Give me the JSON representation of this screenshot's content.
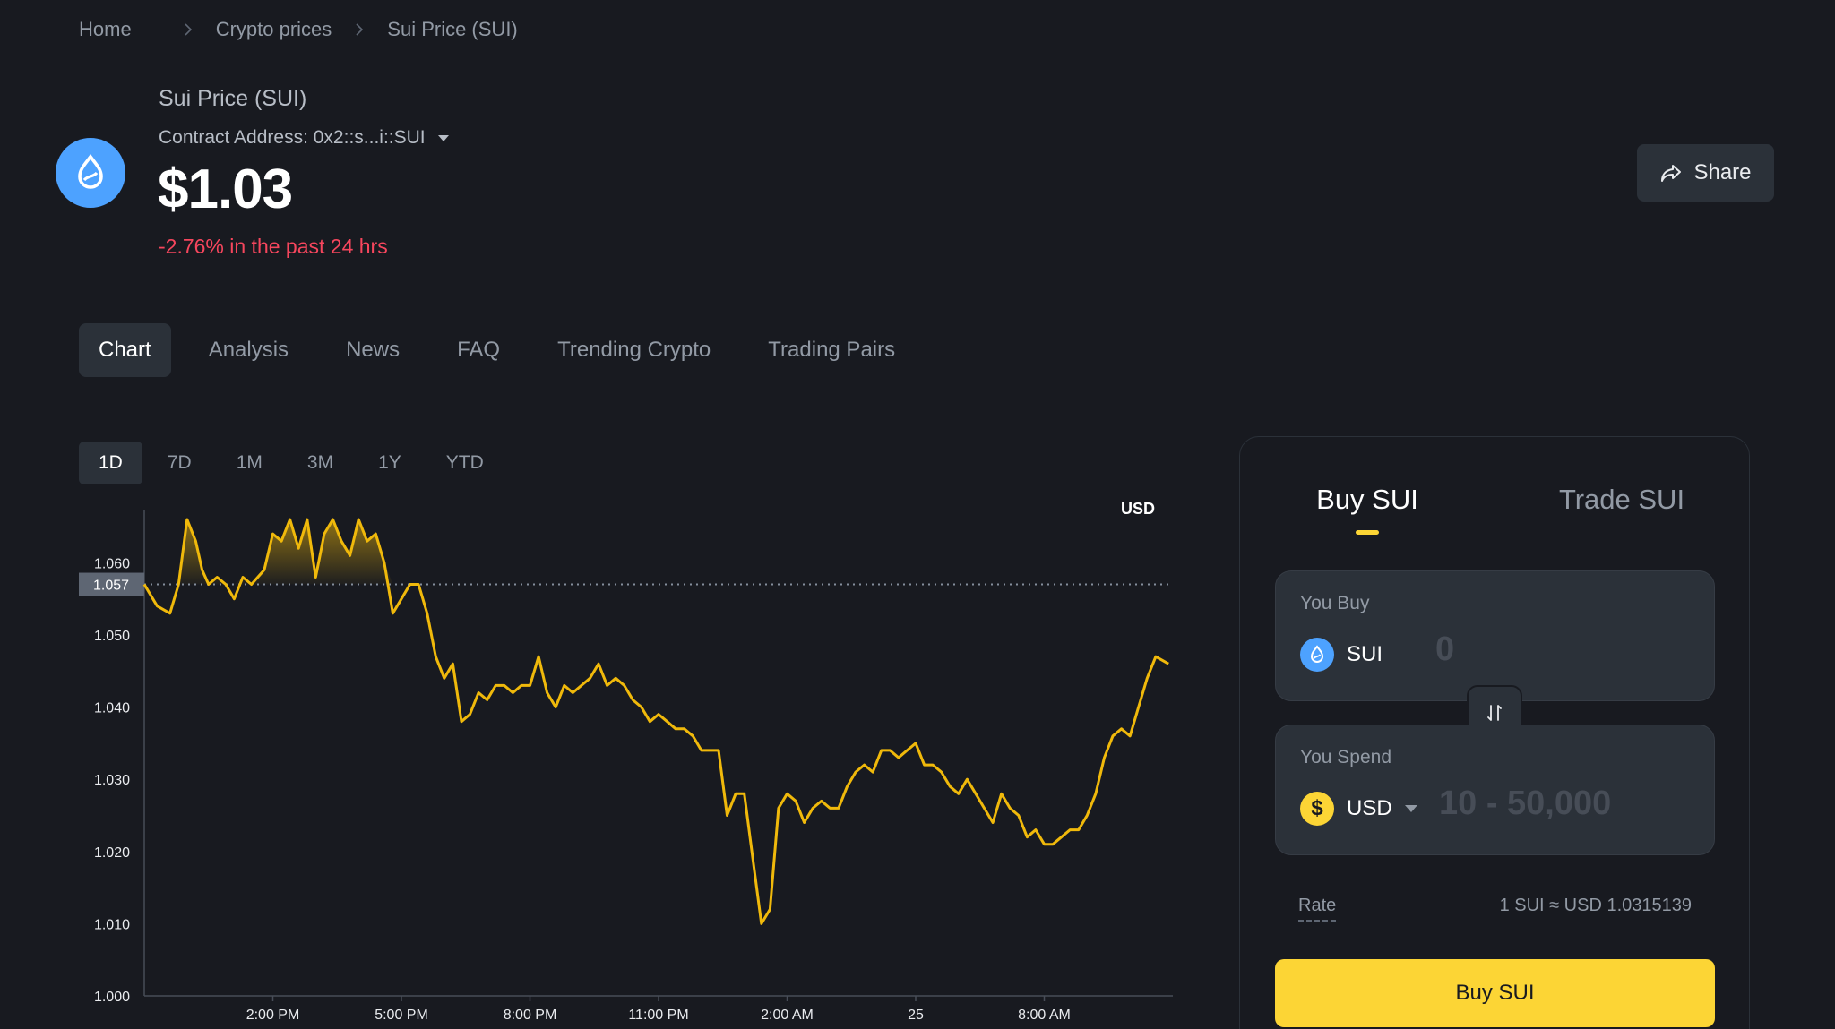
{
  "breadcrumb": {
    "home": "Home",
    "crypto_prices": "Crypto prices",
    "current": "Sui Price (SUI)"
  },
  "coin": {
    "name": "Sui Price (SUI)",
    "contract": "Contract Address: 0x2::s...i::SUI",
    "price": "$1.03",
    "change": "-2.76% in the past 24 hrs",
    "logo_icon": "sui-drop-icon",
    "brand_color": "#4da2ff"
  },
  "share": {
    "label": "Share",
    "icon": "share-arrow-icon"
  },
  "tabs": [
    "Chart",
    "Analysis",
    "News",
    "FAQ",
    "Trending Crypto",
    "Trading Pairs"
  ],
  "ranges": [
    "1D",
    "7D",
    "1M",
    "3M",
    "1Y",
    "YTD"
  ],
  "currency_label": "USD",
  "chart_data": {
    "type": "line",
    "ylim": [
      1.0,
      1.066
    ],
    "yticks": [
      "1.000",
      "1.010",
      "1.020",
      "1.030",
      "1.040",
      "1.050",
      "1.060"
    ],
    "ytick_values": [
      1.0,
      1.01,
      1.02,
      1.03,
      1.04,
      1.05,
      1.06
    ],
    "xticks": [
      "2:00 PM",
      "5:00 PM",
      "8:00 PM",
      "11:00 PM",
      "2:00 AM",
      "25",
      "8:00 AM"
    ],
    "xtick_values": [
      14,
      17,
      20,
      23,
      26,
      29,
      32
    ],
    "xlim": [
      11,
      35
    ],
    "baseline": 1.057,
    "baseline_label": "1.057",
    "grid": false,
    "line_color": "#f0b90b",
    "series": [
      {
        "x": [
          11.0,
          11.3,
          11.6,
          11.8,
          12.0,
          12.2,
          12.35,
          12.5,
          12.7,
          12.9,
          13.1,
          13.3,
          13.5,
          13.8,
          14.0,
          14.2,
          14.4,
          14.6,
          14.8,
          15.0,
          15.2,
          15.4,
          15.6,
          15.8,
          16.0,
          16.2,
          16.4,
          16.6,
          16.8,
          17.0,
          17.2,
          17.4,
          17.6,
          17.8,
          18.0,
          18.2,
          18.4,
          18.6,
          18.8,
          19.0,
          19.2,
          19.4,
          19.6,
          19.8,
          20.0,
          20.2,
          20.4,
          20.6,
          20.8,
          21.0,
          21.2,
          21.4,
          21.6,
          21.8,
          22.0,
          22.2,
          22.4,
          22.6,
          22.8,
          23.0,
          23.2,
          23.4,
          23.6,
          23.8,
          24.0,
          24.2,
          24.4,
          24.6,
          24.8,
          25.0,
          25.2,
          25.4,
          25.6,
          25.8,
          26.0,
          26.2,
          26.4,
          26.6,
          26.8,
          27.0,
          27.2,
          27.4,
          27.6,
          27.8,
          28.0,
          28.2,
          28.4,
          28.6,
          28.8,
          29.0,
          29.2,
          29.4,
          29.6,
          29.8,
          30.0,
          30.2,
          30.4,
          30.6,
          30.8,
          31.0,
          31.2,
          31.4,
          31.6,
          31.8,
          32.0,
          32.2,
          32.4,
          32.6,
          32.8,
          33.0,
          33.2,
          33.4,
          33.6,
          33.8,
          34.0,
          34.2,
          34.4,
          34.6,
          34.9
        ],
        "y": [
          1.057,
          1.054,
          1.053,
          1.057,
          1.066,
          1.063,
          1.059,
          1.057,
          1.058,
          1.057,
          1.055,
          1.058,
          1.057,
          1.059,
          1.064,
          1.063,
          1.066,
          1.062,
          1.066,
          1.058,
          1.064,
          1.066,
          1.063,
          1.061,
          1.066,
          1.063,
          1.064,
          1.06,
          1.053,
          1.055,
          1.057,
          1.057,
          1.053,
          1.047,
          1.044,
          1.046,
          1.038,
          1.039,
          1.042,
          1.041,
          1.043,
          1.043,
          1.042,
          1.043,
          1.043,
          1.047,
          1.042,
          1.04,
          1.043,
          1.042,
          1.043,
          1.044,
          1.046,
          1.043,
          1.044,
          1.043,
          1.041,
          1.04,
          1.038,
          1.039,
          1.038,
          1.037,
          1.037,
          1.036,
          1.034,
          1.034,
          1.034,
          1.025,
          1.028,
          1.028,
          1.019,
          1.01,
          1.012,
          1.026,
          1.028,
          1.027,
          1.024,
          1.026,
          1.027,
          1.026,
          1.026,
          1.029,
          1.031,
          1.032,
          1.031,
          1.034,
          1.034,
          1.033,
          1.034,
          1.035,
          1.032,
          1.032,
          1.031,
          1.029,
          1.028,
          1.03,
          1.028,
          1.026,
          1.024,
          1.028,
          1.026,
          1.025,
          1.022,
          1.023,
          1.021,
          1.021,
          1.022,
          1.023,
          1.023,
          1.025,
          1.028,
          1.033,
          1.036,
          1.037,
          1.036,
          1.04,
          1.044,
          1.047,
          1.046
        ]
      }
    ]
  },
  "panel": {
    "tab_buy": "Buy SUI",
    "tab_trade": "Trade SUI",
    "you_buy_label": "You Buy",
    "buy_asset": "SUI",
    "buy_placeholder": "0",
    "you_spend_label": "You Spend",
    "spend_asset": "USD",
    "spend_symbol": "$",
    "spend_placeholder": "10 - 50,000",
    "rate_label": "Rate",
    "rate_value": "1 SUI ≈ USD 1.0315139",
    "buy_button": "Buy SUI",
    "accent": "#fcd535"
  }
}
